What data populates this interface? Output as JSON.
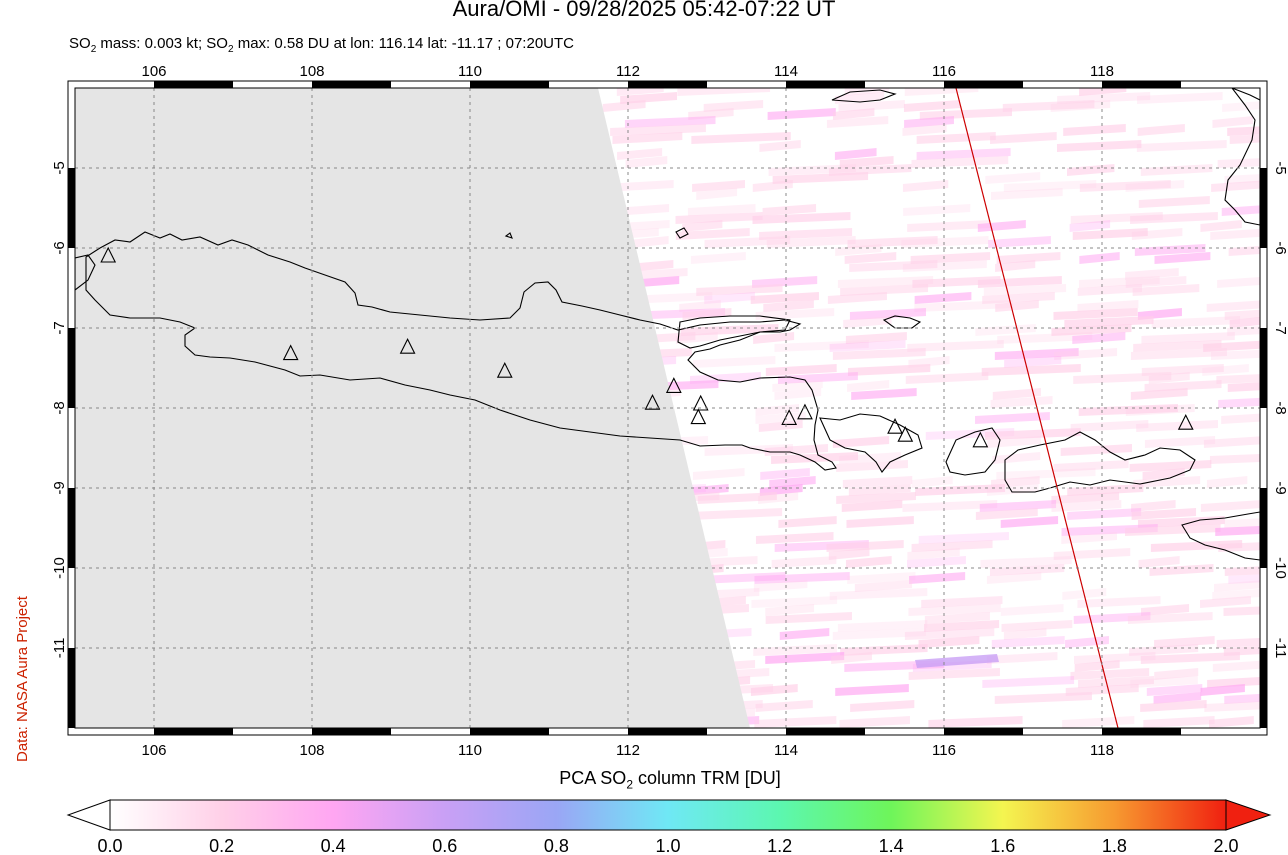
{
  "title": "Aura/OMI - 09/28/2025 05:42-07:22 UT",
  "subtitle": {
    "prefix": "SO",
    "sub1": "2",
    "mid": " mass: 0.003 kt; SO",
    "sub2": "2",
    "suffix": " max: 0.58 DU at lon: 116.14 lat: -11.17 ; 07:20UTC"
  },
  "credit": "Data: NASA Aura Project",
  "map": {
    "lon_range": [
      105,
      120
    ],
    "lat_range": [
      -12,
      -4
    ],
    "lon_ticks": [
      "106",
      "108",
      "110",
      "112",
      "114",
      "116",
      "118"
    ],
    "lon_tick_values": [
      106,
      108,
      110,
      112,
      114,
      116,
      118
    ],
    "lat_ticks": [
      "-5",
      "-6",
      "-7",
      "-8",
      "-9",
      "-10",
      "-11"
    ],
    "lat_tick_values": [
      -5,
      -6,
      -7,
      -8,
      -9,
      -10,
      -11
    ],
    "no_data_color": "#e5e5e5",
    "coastline_color": "#000000",
    "orbit_track_color": "#cc0000",
    "volcanoes": [
      {
        "lon": 105.42,
        "lat": -6.1
      },
      {
        "lon": 107.73,
        "lat": -7.32
      },
      {
        "lon": 109.21,
        "lat": -7.24
      },
      {
        "lon": 110.44,
        "lat": -7.54
      },
      {
        "lon": 112.31,
        "lat": -7.94
      },
      {
        "lon": 112.58,
        "lat": -7.73
      },
      {
        "lon": 112.92,
        "lat": -7.95
      },
      {
        "lon": 112.89,
        "lat": -8.12
      },
      {
        "lon": 114.04,
        "lat": -8.13
      },
      {
        "lon": 114.24,
        "lat": -8.06
      },
      {
        "lon": 115.38,
        "lat": -8.24
      },
      {
        "lon": 115.51,
        "lat": -8.34
      },
      {
        "lon": 116.46,
        "lat": -8.41
      },
      {
        "lon": 119.06,
        "lat": -8.19
      }
    ]
  },
  "colorbar": {
    "title_prefix": "PCA SO",
    "title_sub": "2",
    "title_suffix": " column TRM [DU]",
    "labels": [
      "0.0",
      "0.2",
      "0.4",
      "0.6",
      "0.8",
      "1.0",
      "1.2",
      "1.4",
      "1.6",
      "1.8",
      "2.0"
    ],
    "colors": [
      "#ffffff",
      "#ffd0e8",
      "#ffa6f2",
      "#c9a0f5",
      "#9aa6f5",
      "#6fe8f5",
      "#5cf7b0",
      "#6ef55a",
      "#f4f550",
      "#f79a30",
      "#f02010"
    ]
  }
}
